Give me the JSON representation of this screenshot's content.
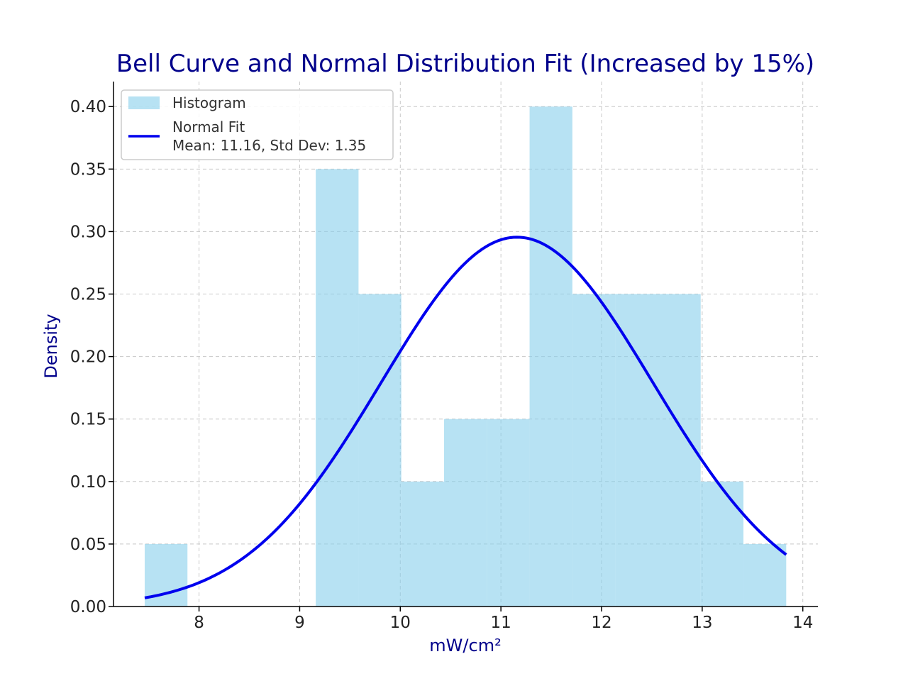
{
  "chart_data": {
    "type": "bar",
    "title": "Bell Curve and Normal Distribution Fit (Increased by 15%)",
    "xlabel": "mW/cm²",
    "ylabel": "Density",
    "xlim": [
      7.15,
      14.15
    ],
    "ylim": [
      0,
      0.42
    ],
    "x_ticks": [
      8,
      9,
      10,
      11,
      12,
      13,
      14
    ],
    "y_ticks": [
      0.0,
      0.05,
      0.1,
      0.15,
      0.2,
      0.25,
      0.3,
      0.35,
      0.4
    ],
    "grid": true,
    "legend_position": "top-left",
    "histogram": {
      "name": "Histogram",
      "color": "#87ceeb",
      "bin_edges": [
        7.46,
        7.885,
        8.31,
        8.735,
        9.16,
        9.585,
        10.01,
        10.435,
        10.86,
        11.285,
        11.71,
        12.135,
        12.56,
        12.985,
        13.41,
        13.835
      ],
      "values": [
        0.05,
        0.0,
        0.0,
        0.0,
        0.35,
        0.25,
        0.1,
        0.15,
        0.15,
        0.4,
        0.25,
        0.25,
        0.25,
        0.1,
        0.05
      ]
    },
    "normal_fit": {
      "name": "Normal Fit",
      "name_line2": "Mean: 11.16, Std Dev: 1.35",
      "color": "#0000ee",
      "mean": 11.16,
      "std": 1.35,
      "x_range": [
        7.46,
        13.835
      ]
    }
  }
}
